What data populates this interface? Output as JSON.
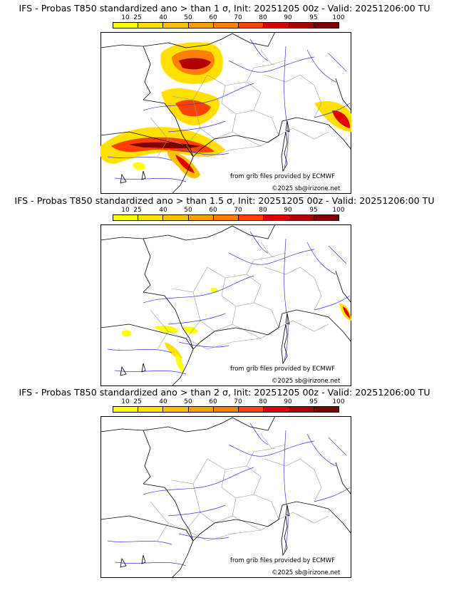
{
  "colorbar": {
    "ticks": [
      "10",
      "25",
      "40",
      "50",
      "60",
      "70",
      "80",
      "90",
      "95",
      "100"
    ],
    "colors": [
      "#ffff00",
      "#ffe000",
      "#ffc000",
      "#ffa000",
      "#ff8000",
      "#ff4000",
      "#e00000",
      "#b00000",
      "#800000"
    ]
  },
  "panels": [
    {
      "title": "IFS - Probas T850  standardized ano > than 1 σ, Init: 20251205 00z - Valid: 20251206:00 TU",
      "source_text": "from grib files provided by ECMWF",
      "copyright": "©2025 sb@irizone.net",
      "probability_level": "high"
    },
    {
      "title": "IFS - Probas T850  standardized ano > than 1.5 σ, Init: 20251205 00z - Valid: 20251206:00 TU",
      "source_text": "from grib files provided by ECMWF",
      "copyright": "©2025 sb@irizone.net",
      "probability_level": "low"
    },
    {
      "title": "IFS - Probas T850  standardized ano > than 2 σ, Init: 20251205 00z - Valid: 20251206:00 TU",
      "source_text": "from grib files provided by ECMWF",
      "copyright": "©2025 sb@irizone.net",
      "probability_level": "none"
    }
  ]
}
